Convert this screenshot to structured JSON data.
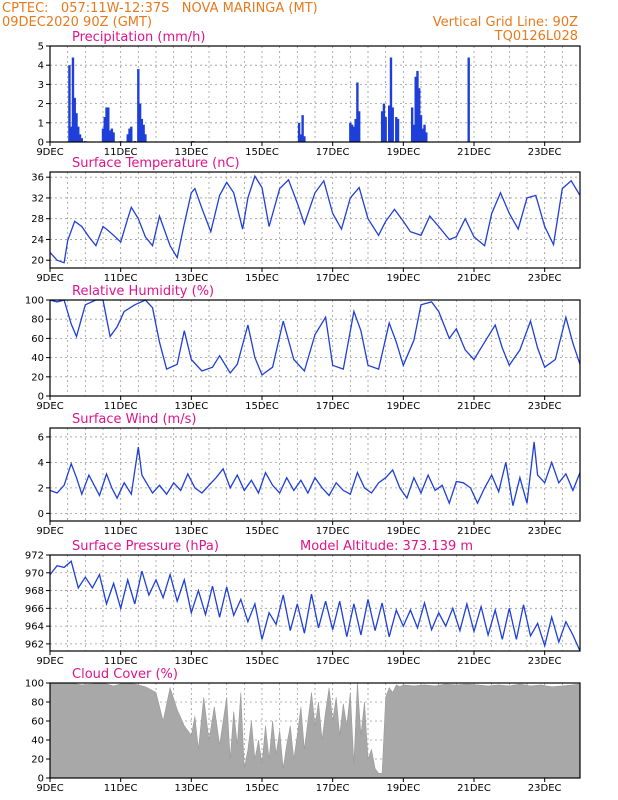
{
  "header": {
    "left_line1": "CPTEC:   057:11W-12:37S   NOVA MARINGA (MT)",
    "left_line2": "09DEC2020 90Z (GMT)",
    "right_line1": "Vertical Grid Line: 90Z",
    "right_line2": "TQ0126L028"
  },
  "colors": {
    "header": "#e87a1e",
    "titles": "#e0148c",
    "series": "#1f3fd9",
    "cloud_fill": "#a8a8a8"
  },
  "x_tick_labels": [
    "9DEC",
    "11DEC",
    "13DEC",
    "15DEC",
    "17DEC",
    "19DEC",
    "21DEC",
    "23DEC"
  ],
  "chart_data": [
    {
      "id": "precip",
      "type": "bar",
      "title": "Precipitation (mm/h)",
      "x_range_days": [
        9,
        24
      ],
      "ylim": [
        0,
        5
      ],
      "yticks": [
        "0",
        "1",
        "2",
        "3",
        "4",
        "5"
      ],
      "x_days": [
        9.55,
        9.6,
        9.65,
        9.7,
        9.75,
        9.8,
        9.85,
        9.9,
        10.0,
        10.5,
        10.55,
        10.6,
        10.65,
        10.7,
        10.75,
        10.8,
        11.0,
        11.2,
        11.25,
        11.3,
        11.4,
        11.5,
        11.55,
        11.6,
        11.65,
        11.7,
        12.0,
        13.05,
        14.0,
        15.0,
        16.05,
        16.1,
        16.15,
        16.2,
        16.5,
        16.55,
        17.5,
        17.55,
        17.6,
        17.65,
        17.7,
        17.75,
        18.3,
        18.35,
        18.4,
        18.45,
        18.5,
        18.6,
        18.65,
        18.7,
        18.8,
        18.85,
        18.9,
        19.0,
        19.25,
        19.3,
        19.35,
        19.4,
        19.45,
        19.5,
        19.55,
        19.6,
        19.65,
        19.9,
        20.0,
        20.8,
        20.85,
        21.0,
        22.0
      ],
      "values": [
        4.0,
        0.8,
        4.4,
        2.3,
        1.5,
        0.8,
        0.4,
        0.2,
        0.05,
        0.7,
        1.3,
        1.8,
        1.8,
        0.6,
        0.7,
        0.5,
        0.05,
        0.4,
        0.7,
        0.8,
        0.05,
        3.8,
        2.0,
        1.2,
        0.9,
        0.4,
        0.02,
        0.05,
        0.03,
        0.02,
        1.0,
        0.4,
        1.4,
        0.3,
        0.02,
        0.02,
        1.0,
        0.9,
        0.8,
        1.2,
        3.1,
        1.6,
        0.02,
        0.02,
        1.6,
        2.0,
        1.3,
        1.9,
        4.4,
        1.8,
        1.3,
        1.2,
        0.02,
        0.02,
        1.8,
        0.9,
        3.4,
        3.7,
        2.8,
        1.4,
        0.7,
        0.9,
        0.5,
        0.02,
        0.02,
        0.02,
        4.4,
        0.02,
        0.02
      ]
    },
    {
      "id": "temp",
      "type": "line",
      "title": "Surface Temperature (nC)",
      "x_range_days": [
        9,
        24
      ],
      "ylim": [
        18.5,
        37
      ],
      "yticks": [
        "20",
        "24",
        "28",
        "32",
        "36"
      ],
      "ytick_values": [
        20,
        24,
        28,
        32,
        36
      ],
      "x_days": [
        9.0,
        9.2,
        9.4,
        9.5,
        9.7,
        9.9,
        10.1,
        10.3,
        10.5,
        10.6,
        10.8,
        11.0,
        11.2,
        11.3,
        11.5,
        11.7,
        11.9,
        12.1,
        12.4,
        12.6,
        12.8,
        13.0,
        13.1,
        13.3,
        13.55,
        13.8,
        14.0,
        14.2,
        14.45,
        14.6,
        14.8,
        15.0,
        15.2,
        15.5,
        15.75,
        16.0,
        16.2,
        16.5,
        16.75,
        17.0,
        17.25,
        17.5,
        17.75,
        18.0,
        18.3,
        18.5,
        18.75,
        19.0,
        19.2,
        19.5,
        19.75,
        20.0,
        20.3,
        20.5,
        20.75,
        21.0,
        21.3,
        21.5,
        21.75,
        22.0,
        22.25,
        22.5,
        22.75,
        23.0,
        23.25,
        23.5,
        23.75,
        24.0
      ],
      "values": [
        21.5,
        20.0,
        19.5,
        23.8,
        27.5,
        26.5,
        24.5,
        22.8,
        26.5,
        26.0,
        24.8,
        23.5,
        28.0,
        30.2,
        28.0,
        24.5,
        22.8,
        28.5,
        22.8,
        20.5,
        27.0,
        33.0,
        33.8,
        30.0,
        25.5,
        32.5,
        35.0,
        33.0,
        26.0,
        32.0,
        36.2,
        34.0,
        26.5,
        33.8,
        35.5,
        31.0,
        27.0,
        33.0,
        35.3,
        29.0,
        26.0,
        32.0,
        34.0,
        28.0,
        24.8,
        27.5,
        29.8,
        27.5,
        25.5,
        24.8,
        28.5,
        26.5,
        24.0,
        24.5,
        28.0,
        24.5,
        22.8,
        29.0,
        33.0,
        29.0,
        26.0,
        32.0,
        32.5,
        26.5,
        23.0,
        33.8,
        35.3,
        32.5
      ]
    },
    {
      "id": "rh",
      "type": "line",
      "title": "Relative Humidity (%)",
      "x_range_days": [
        9,
        24
      ],
      "ylim": [
        0,
        100
      ],
      "yticks": [
        "0",
        "20",
        "40",
        "60",
        "80",
        "100"
      ],
      "ytick_values": [
        0,
        20,
        40,
        60,
        80,
        100
      ],
      "x_days": [
        9.0,
        9.2,
        9.4,
        9.6,
        9.75,
        10.0,
        10.3,
        10.5,
        10.7,
        10.9,
        11.1,
        11.4,
        11.7,
        11.9,
        12.1,
        12.3,
        12.6,
        12.8,
        13.0,
        13.3,
        13.6,
        13.8,
        14.1,
        14.3,
        14.6,
        14.8,
        15.0,
        15.3,
        15.6,
        15.9,
        16.2,
        16.5,
        16.8,
        17.0,
        17.3,
        17.6,
        17.8,
        18.0,
        18.3,
        18.6,
        18.8,
        19.0,
        19.3,
        19.5,
        19.8,
        20.0,
        20.3,
        20.5,
        20.75,
        21.0,
        21.3,
        21.6,
        21.8,
        22.0,
        22.3,
        22.6,
        22.8,
        23.0,
        23.3,
        23.6,
        23.8,
        24.0
      ],
      "values": [
        100,
        98,
        100,
        75,
        62,
        95,
        100,
        100,
        62,
        72,
        88,
        95,
        100,
        92,
        56,
        28,
        33,
        68,
        38,
        26,
        30,
        42,
        24,
        33,
        74,
        40,
        22,
        30,
        78,
        38,
        26,
        64,
        82,
        32,
        28,
        88,
        68,
        32,
        28,
        76,
        56,
        32,
        58,
        95,
        98,
        88,
        60,
        70,
        48,
        38,
        56,
        74,
        50,
        32,
        48,
        78,
        50,
        30,
        38,
        82,
        55,
        33
      ]
    },
    {
      "id": "wind",
      "type": "line",
      "title": "Surface Wind (m/s)",
      "x_range_days": [
        9,
        24
      ],
      "ylim": [
        -0.6,
        6.7
      ],
      "yticks": [
        "0",
        "2",
        "4",
        "6"
      ],
      "ytick_values": [
        0,
        2,
        4,
        6
      ],
      "x_days": [
        9.0,
        9.2,
        9.4,
        9.6,
        9.75,
        9.9,
        10.1,
        10.25,
        10.4,
        10.6,
        10.75,
        10.9,
        11.1,
        11.3,
        11.5,
        11.6,
        11.75,
        11.9,
        12.1,
        12.3,
        12.5,
        12.7,
        12.9,
        13.1,
        13.3,
        13.5,
        13.7,
        13.9,
        14.1,
        14.3,
        14.5,
        14.7,
        14.9,
        15.1,
        15.3,
        15.5,
        15.7,
        15.9,
        16.1,
        16.3,
        16.5,
        16.7,
        16.9,
        17.1,
        17.3,
        17.5,
        17.7,
        17.9,
        18.1,
        18.3,
        18.5,
        18.7,
        18.9,
        19.1,
        19.3,
        19.5,
        19.7,
        19.9,
        20.1,
        20.3,
        20.5,
        20.7,
        20.9,
        21.1,
        21.3,
        21.5,
        21.7,
        21.9,
        22.1,
        22.3,
        22.5,
        22.7,
        22.8,
        23.0,
        23.2,
        23.4,
        23.6,
        23.8,
        24.0
      ],
      "values": [
        1.8,
        1.6,
        2.2,
        3.9,
        2.8,
        1.5,
        3.0,
        2.2,
        1.4,
        3.1,
        2.0,
        1.2,
        2.4,
        1.5,
        5.2,
        3.0,
        2.3,
        1.6,
        2.2,
        1.5,
        2.4,
        1.8,
        3.1,
        2.0,
        1.6,
        2.2,
        2.8,
        3.5,
        2.0,
        3.0,
        1.8,
        2.6,
        1.6,
        3.2,
        2.2,
        1.6,
        2.8,
        1.8,
        2.6,
        1.6,
        2.8,
        2.0,
        1.4,
        2.4,
        1.8,
        1.5,
        3.2,
        2.0,
        1.6,
        2.4,
        2.8,
        3.4,
        2.0,
        1.2,
        2.8,
        1.6,
        3.0,
        1.8,
        2.2,
        0.8,
        2.5,
        2.4,
        2.0,
        0.8,
        2.0,
        3.0,
        1.7,
        4.0,
        0.6,
        2.8,
        0.8,
        5.6,
        3.0,
        2.4,
        4.0,
        2.4,
        3.1,
        1.8,
        3.2
      ]
    },
    {
      "id": "pressure",
      "type": "line",
      "title": "Surface Pressure (hPa)",
      "annotation": "Model Altitude: 373.139 m",
      "x_range_days": [
        9,
        24
      ],
      "ylim": [
        961.2,
        972
      ],
      "yticks": [
        "962",
        "964",
        "966",
        "968",
        "970",
        "972"
      ],
      "ytick_values": [
        962,
        964,
        966,
        968,
        970,
        972
      ],
      "x_days": [
        9.0,
        9.2,
        9.4,
        9.6,
        9.8,
        10.0,
        10.2,
        10.4,
        10.6,
        10.8,
        11.0,
        11.2,
        11.4,
        11.6,
        11.8,
        12.0,
        12.2,
        12.4,
        12.6,
        12.8,
        13.0,
        13.2,
        13.4,
        13.6,
        13.8,
        14.0,
        14.2,
        14.4,
        14.6,
        14.8,
        15.0,
        15.2,
        15.4,
        15.6,
        15.8,
        16.0,
        16.2,
        16.4,
        16.6,
        16.8,
        17.0,
        17.2,
        17.4,
        17.6,
        17.8,
        18.0,
        18.2,
        18.4,
        18.6,
        18.8,
        19.0,
        19.2,
        19.4,
        19.6,
        19.8,
        20.0,
        20.2,
        20.4,
        20.6,
        20.8,
        21.0,
        21.2,
        21.4,
        21.6,
        21.8,
        22.0,
        22.2,
        22.4,
        22.6,
        22.8,
        23.0,
        23.2,
        23.4,
        23.6,
        23.8,
        24.0
      ],
      "values": [
        969.8,
        970.8,
        970.6,
        971.3,
        968.3,
        969.5,
        968.3,
        969.8,
        966.5,
        968.8,
        966.0,
        969.2,
        966.5,
        970.2,
        967.5,
        969.2,
        967.2,
        969.8,
        966.8,
        969.2,
        965.5,
        968.0,
        965.3,
        968.5,
        965.0,
        968.4,
        965.2,
        967.0,
        964.5,
        966.5,
        962.5,
        965.5,
        964.2,
        967.5,
        963.5,
        966.5,
        963.2,
        967.6,
        963.8,
        966.8,
        963.6,
        966.8,
        962.8,
        966.5,
        963.0,
        967.0,
        963.5,
        966.6,
        962.8,
        965.8,
        964.0,
        965.8,
        963.8,
        966.6,
        963.6,
        965.5,
        964.0,
        966.0,
        963.5,
        966.5,
        963.4,
        966.2,
        963.0,
        965.8,
        962.5,
        966.0,
        962.5,
        966.4,
        962.9,
        964.3,
        961.8,
        965.0,
        962.2,
        964.5,
        963.0,
        961.2
      ]
    },
    {
      "id": "cloud",
      "type": "area",
      "title": "Cloud Cover (%)",
      "x_range_days": [
        9,
        24
      ],
      "ylim": [
        0,
        100
      ],
      "yticks": [
        "0",
        "20",
        "40",
        "60",
        "80",
        "100"
      ],
      "ytick_values": [
        0,
        20,
        40,
        60,
        80,
        100
      ],
      "x_days": [
        9.0,
        9.3,
        9.6,
        9.9,
        10.2,
        10.5,
        10.8,
        11.1,
        11.4,
        11.7,
        12.0,
        12.2,
        12.4,
        12.6,
        12.8,
        13.0,
        13.1,
        13.2,
        13.35,
        13.5,
        13.65,
        13.8,
        14.0,
        14.1,
        14.2,
        14.3,
        14.4,
        14.5,
        14.6,
        14.7,
        14.8,
        14.9,
        15.0,
        15.1,
        15.2,
        15.3,
        15.4,
        15.5,
        15.6,
        15.7,
        15.8,
        15.9,
        16.0,
        16.1,
        16.2,
        16.3,
        16.4,
        16.5,
        16.6,
        16.7,
        16.8,
        16.9,
        17.0,
        17.1,
        17.2,
        17.3,
        17.4,
        17.5,
        17.6,
        17.7,
        17.8,
        17.9,
        18.0,
        18.1,
        18.2,
        18.3,
        18.4,
        18.5,
        18.6,
        18.7,
        18.8,
        18.9,
        19.0,
        19.3,
        19.6,
        19.9,
        20.2,
        20.5,
        20.8,
        21.1,
        21.4,
        21.7,
        22.0,
        22.3,
        22.6,
        22.9,
        23.2,
        23.5,
        23.8,
        24.0
      ],
      "values": [
        100,
        100,
        100,
        98,
        99,
        100,
        97,
        100,
        99,
        96,
        90,
        60,
        95,
        72,
        55,
        45,
        65,
        30,
        85,
        40,
        75,
        35,
        85,
        20,
        70,
        35,
        90,
        10,
        30,
        60,
        20,
        40,
        15,
        55,
        20,
        60,
        25,
        50,
        10,
        35,
        55,
        20,
        45,
        75,
        30,
        60,
        90,
        55,
        80,
        40,
        70,
        95,
        60,
        85,
        45,
        78,
        55,
        90,
        15,
        100,
        45,
        80,
        20,
        30,
        10,
        5,
        5,
        85,
        95,
        90,
        98,
        96,
        98,
        97,
        98,
        97,
        99,
        98,
        99,
        98,
        97,
        98,
        97,
        99,
        97,
        98,
        96,
        97,
        98,
        99
      ]
    }
  ]
}
